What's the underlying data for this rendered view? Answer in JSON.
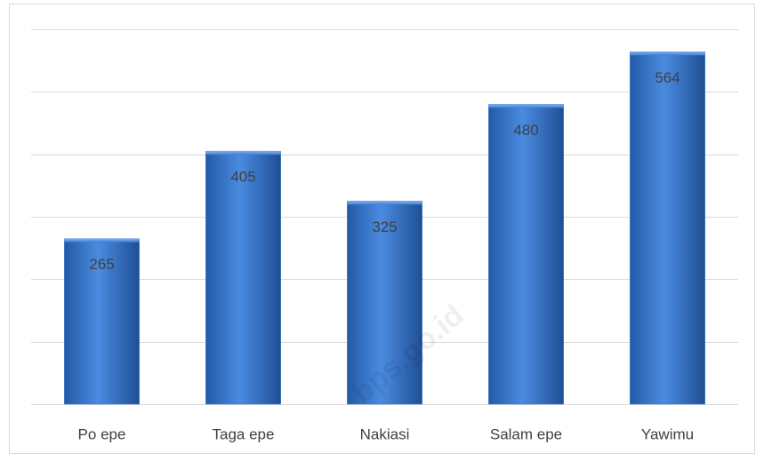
{
  "chart_data": {
    "type": "bar",
    "categories": [
      "Po epe",
      "Taga epe",
      "Nakiasi",
      "Salam epe",
      "Yawimu"
    ],
    "values": [
      265,
      405,
      325,
      480,
      564
    ],
    "color": "#3a78c9",
    "ylim": [
      0,
      600
    ],
    "yticks": [
      0,
      100,
      200,
      300,
      400,
      500,
      600
    ],
    "grid": true,
    "watermark": "bps.go.id"
  }
}
